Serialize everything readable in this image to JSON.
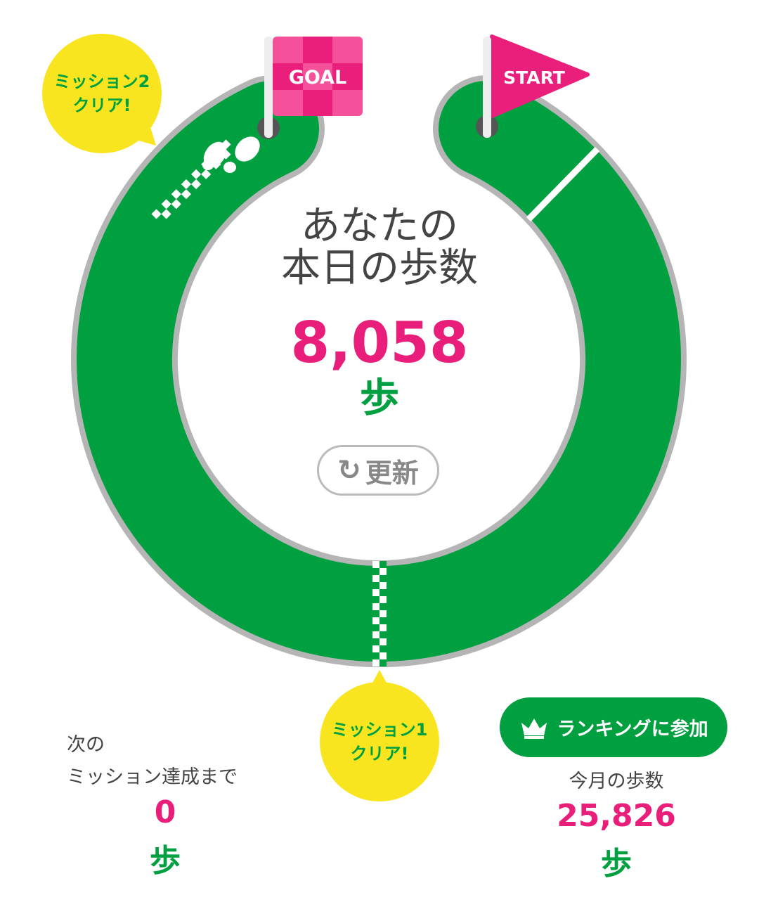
{
  "course": {
    "goal_flag": "GOAL",
    "start_flag": "START",
    "track_color": "#00a040",
    "border_color": "#b5b5b5",
    "accent_pink": "#e91e7a"
  },
  "today": {
    "title_line1": "あなたの",
    "title_line2": "本日の歩数",
    "steps": "8,058",
    "unit": "歩",
    "refresh_label": "更新"
  },
  "missions": [
    {
      "line1": "ミッション1",
      "line2": "クリア!"
    },
    {
      "line1": "ミッション2",
      "line2": "クリア!"
    }
  ],
  "next_mission": {
    "label_line1": "次の",
    "label_line2": "ミッション達成まで",
    "steps": "0",
    "unit": "歩"
  },
  "ranking": {
    "button_label": "ランキングに参加",
    "month_label": "今月の歩数",
    "steps": "25,826",
    "unit": "歩"
  }
}
